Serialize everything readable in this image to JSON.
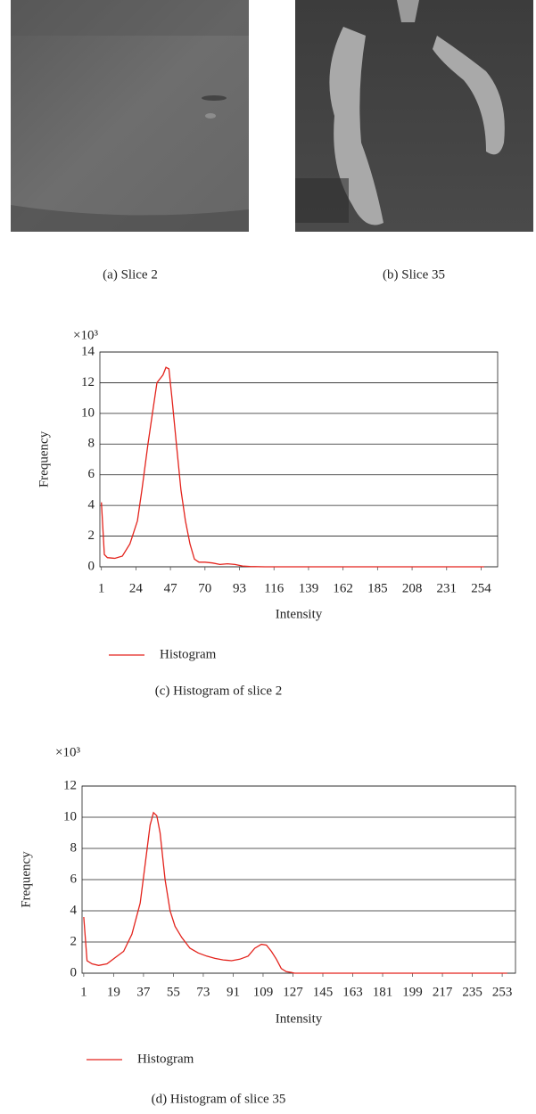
{
  "images": [
    {
      "caption": "(a) Slice 2"
    },
    {
      "caption": "(b) Slice 35"
    }
  ],
  "chart_data": [
    {
      "type": "line",
      "caption": "(c) Histogram of slice 2",
      "x_label": "Intensity",
      "y_label": "Frequency",
      "y_multiplier": "×10³",
      "x": [
        1,
        3,
        5,
        10,
        15,
        20,
        25,
        28,
        32,
        35,
        38,
        42,
        44,
        46,
        48,
        51,
        54,
        57,
        60,
        63,
        66,
        70,
        75,
        80,
        85,
        90,
        95,
        100,
        110,
        256
      ],
      "series": [
        {
          "name": "Histogram",
          "color": "#e3231c",
          "values": [
            4.2,
            0.8,
            0.6,
            0.55,
            0.7,
            1.5,
            3,
            5,
            8,
            10,
            12,
            12.5,
            13,
            12.9,
            11,
            8,
            5,
            3,
            1.5,
            0.5,
            0.3,
            0.3,
            0.25,
            0.15,
            0.2,
            0.15,
            0.05,
            0.02,
            0,
            0
          ]
        }
      ],
      "xlim": [
        0,
        265
      ],
      "xticks": [
        1,
        24,
        47,
        70,
        93,
        116,
        139,
        162,
        185,
        208,
        231,
        254
      ],
      "ylim": [
        0,
        14
      ],
      "yticks": [
        0,
        2,
        4,
        6,
        8,
        10,
        12,
        14
      ],
      "grid": true
    },
    {
      "type": "line",
      "caption": "(d) Histogram of slice 35",
      "x_label": "Intensity",
      "y_label": "Frequency",
      "y_multiplier": "×10³",
      "x": [
        1,
        3,
        6,
        10,
        15,
        20,
        25,
        30,
        35,
        38,
        41,
        43,
        45,
        47,
        50,
        53,
        56,
        60,
        65,
        70,
        75,
        80,
        85,
        90,
        95,
        100,
        104,
        108,
        111,
        114,
        117,
        120,
        123,
        126,
        128,
        256
      ],
      "series": [
        {
          "name": "Histogram",
          "color": "#e3231c",
          "values": [
            3.6,
            0.8,
            0.6,
            0.5,
            0.6,
            1,
            1.4,
            2.5,
            4.5,
            7,
            9.5,
            10.3,
            10.1,
            9,
            6,
            4,
            3,
            2.3,
            1.6,
            1.3,
            1.1,
            0.95,
            0.85,
            0.8,
            0.9,
            1.1,
            1.6,
            1.85,
            1.8,
            1.4,
            0.9,
            0.3,
            0.1,
            0.05,
            0,
            0
          ]
        }
      ],
      "xlim": [
        0,
        261
      ],
      "xticks": [
        1,
        19,
        37,
        55,
        73,
        91,
        109,
        127,
        145,
        163,
        181,
        199,
        217,
        235,
        253
      ],
      "ylim": [
        0,
        12
      ],
      "yticks": [
        0,
        2,
        4,
        6,
        8,
        10,
        12
      ],
      "grid": true
    }
  ]
}
